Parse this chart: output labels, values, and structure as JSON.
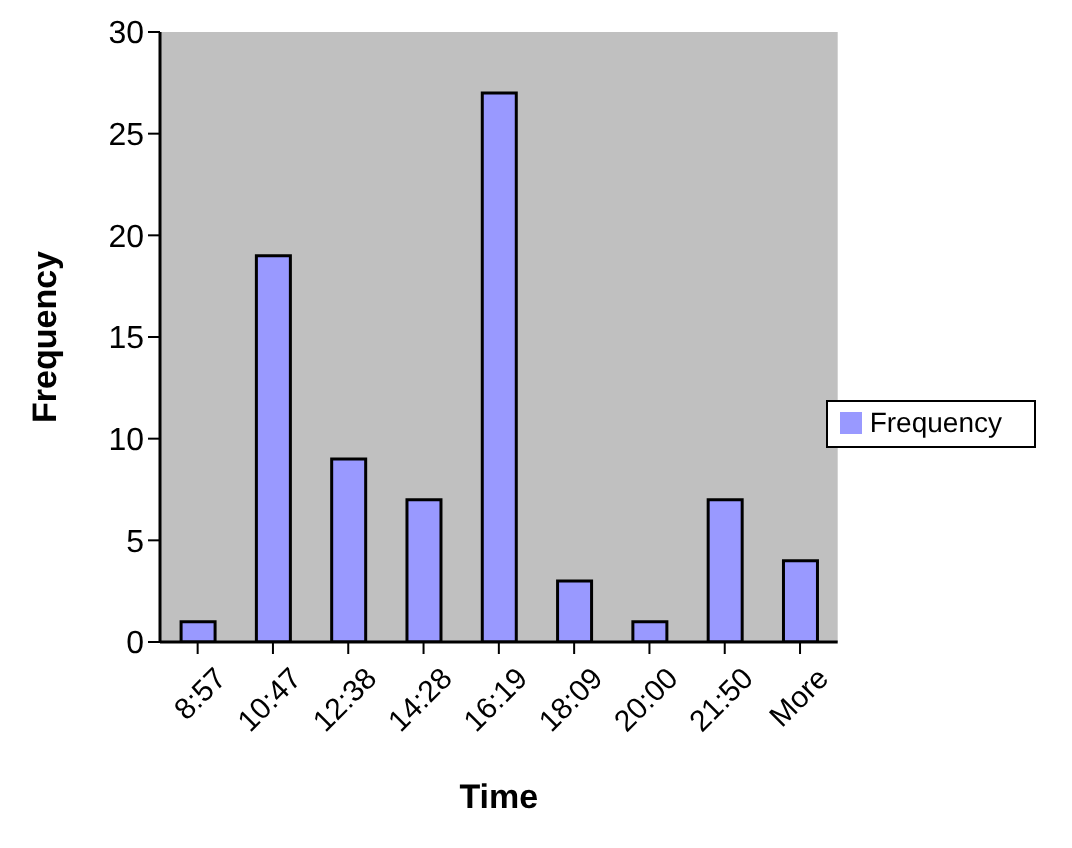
{
  "chart_data": {
    "type": "bar",
    "xlabel": "Time",
    "ylabel": "Frequency",
    "categories": [
      "8:57",
      "10:47",
      "12:38",
      "14:28",
      "16:19",
      "18:09",
      "20:00",
      "21:50",
      "More"
    ],
    "series": [
      {
        "name": "Frequency",
        "color": "#9999ff",
        "values": [
          1,
          19,
          9,
          7,
          27,
          3,
          1,
          7,
          4
        ]
      }
    ],
    "ylim": [
      0,
      30
    ],
    "yticks": [
      0,
      5,
      10,
      15,
      20,
      25,
      30
    ],
    "legend": "right"
  }
}
